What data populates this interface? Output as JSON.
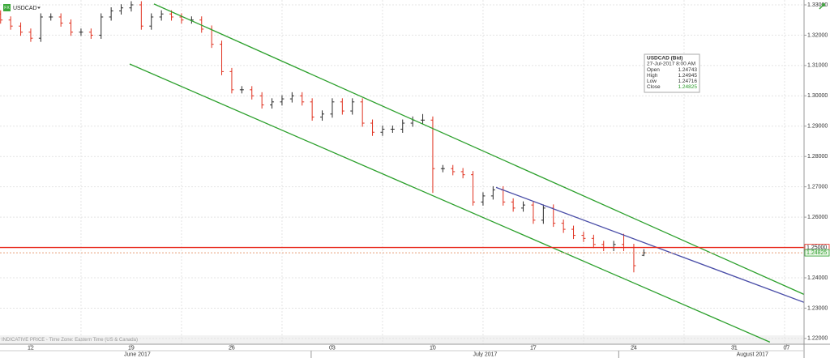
{
  "chart_data": {
    "type": "ohlc",
    "badge": "FX",
    "footnote": "INDICATIVE PRICE - Time Zone: Eastern Time (US & Canada)",
    "x": [
      -1.5,
      -1,
      -0.5,
      0,
      0.5,
      1,
      1.5,
      2,
      2.5,
      3,
      3.5,
      4,
      4.5,
      5,
      5.5,
      6,
      6.5,
      7,
      7.5,
      8,
      8.5,
      9,
      9.5,
      10,
      10.5,
      11,
      11.5,
      12,
      12.5,
      13,
      13.5,
      14,
      14.5,
      15,
      15.5,
      16,
      16.5,
      17,
      17.5,
      18,
      18.5,
      19,
      19.5,
      20,
      20.5,
      21,
      21.5,
      22,
      22.5,
      23,
      23.5,
      24,
      24.5,
      25,
      25.5,
      26,
      26.5,
      27,
      27.5,
      28,
      28.5,
      29,
      29.5,
      30,
      30.5
    ],
    "series": [
      {
        "name": "USDCAD",
        "up_color": "#2b2b2b",
        "down_color": "#e0301e",
        "open": [
          1.327,
          1.325,
          1.323,
          1.321,
          1.319,
          1.326,
          1.326,
          1.324,
          1.321,
          1.321,
          1.32,
          1.326,
          1.328,
          1.329,
          1.33,
          1.323,
          1.326,
          1.327,
          1.326,
          1.325,
          1.325,
          1.322,
          1.317,
          1.308,
          1.302,
          1.302,
          1.3,
          1.297,
          1.298,
          1.299,
          1.3,
          1.298,
          1.293,
          1.294,
          1.298,
          1.295,
          1.298,
          1.291,
          1.288,
          1.289,
          1.289,
          1.291,
          1.292,
          1.292,
          1.276,
          1.276,
          1.275,
          1.274,
          1.265,
          1.267,
          1.269,
          1.265,
          1.263,
          1.264,
          1.259,
          1.263,
          1.258,
          1.256,
          1.254,
          1.253,
          1.251,
          1.25,
          1.251,
          1.25,
          1.24743
        ],
        "high": [
          1.3282,
          1.3262,
          1.3242,
          1.3222,
          1.3272,
          1.3272,
          1.3272,
          1.3252,
          1.3222,
          1.3222,
          1.3272,
          1.3292,
          1.3302,
          1.3312,
          1.3312,
          1.3272,
          1.3282,
          1.3282,
          1.3272,
          1.3262,
          1.3262,
          1.3232,
          1.3182,
          1.3092,
          1.3032,
          1.3032,
          1.3012,
          1.2992,
          1.3002,
          1.3012,
          1.3012,
          1.2992,
          1.2952,
          1.2992,
          1.2992,
          1.2992,
          1.2992,
          1.2922,
          1.2902,
          1.2902,
          1.2922,
          1.2932,
          1.294,
          1.2932,
          1.2772,
          1.2772,
          1.2762,
          1.2752,
          1.2682,
          1.2702,
          1.2702,
          1.2662,
          1.2652,
          1.2652,
          1.2642,
          1.2642,
          1.2592,
          1.2572,
          1.2552,
          1.2542,
          1.2522,
          1.2522,
          1.2545,
          1.2512,
          1.24945
        ],
        "low": [
          1.3238,
          1.3218,
          1.3198,
          1.3178,
          1.3178,
          1.3248,
          1.3228,
          1.3198,
          1.3198,
          1.3188,
          1.3188,
          1.3248,
          1.3268,
          1.3278,
          1.3218,
          1.3218,
          1.3248,
          1.3248,
          1.3238,
          1.3238,
          1.3208,
          1.3158,
          1.3068,
          1.3008,
          1.3008,
          1.2988,
          1.2958,
          1.2958,
          1.2968,
          1.2978,
          1.2968,
          1.2918,
          1.2918,
          1.2928,
          1.2938,
          1.2938,
          1.2898,
          1.2868,
          1.2868,
          1.2878,
          1.2878,
          1.2898,
          1.2908,
          1.268,
          1.2748,
          1.2738,
          1.2728,
          1.2638,
          1.2638,
          1.2658,
          1.2638,
          1.2618,
          1.2618,
          1.2578,
          1.2578,
          1.2568,
          1.2548,
          1.2528,
          1.2518,
          1.2498,
          1.2488,
          1.2488,
          1.2488,
          1.2418,
          1.24716
        ],
        "close": [
          1.325,
          1.323,
          1.321,
          1.319,
          1.326,
          1.326,
          1.324,
          1.321,
          1.321,
          1.32,
          1.326,
          1.328,
          1.329,
          1.33,
          1.323,
          1.326,
          1.327,
          1.326,
          1.325,
          1.325,
          1.322,
          1.317,
          1.308,
          1.302,
          1.302,
          1.3,
          1.297,
          1.298,
          1.299,
          1.3,
          1.298,
          1.293,
          1.294,
          1.298,
          1.295,
          1.298,
          1.291,
          1.288,
          1.289,
          1.289,
          1.291,
          1.292,
          1.292,
          1.276,
          1.276,
          1.275,
          1.274,
          1.265,
          1.267,
          1.269,
          1.265,
          1.263,
          1.264,
          1.259,
          1.263,
          1.258,
          1.256,
          1.254,
          1.253,
          1.251,
          1.25,
          1.251,
          1.25,
          1.244,
          1.24825
        ]
      }
    ],
    "xlim": [
      -1.53,
      38.47
    ],
    "ylim": [
      1.2181,
      1.3316
    ],
    "xticks": [
      {
        "value": 0,
        "label": "12"
      },
      {
        "value": 5,
        "label": "19"
      },
      {
        "value": 10,
        "label": "26"
      },
      {
        "value": 15,
        "label": "03"
      },
      {
        "value": 20,
        "label": "10"
      },
      {
        "value": 25,
        "label": "17"
      },
      {
        "value": 30,
        "label": "24"
      },
      {
        "value": 35,
        "label": "31"
      },
      {
        "value": 37.6,
        "label": "07"
      }
    ],
    "months": [
      {
        "value": 5.3,
        "label": "June 2017"
      },
      {
        "value": 22.6,
        "label": "July 2017"
      },
      {
        "value": 35.9,
        "label": "August 2017"
      }
    ],
    "yticks": [
      {
        "value": 1.22,
        "label": "1.22000"
      },
      {
        "value": 1.23,
        "label": "1.23000"
      },
      {
        "value": 1.24,
        "label": "1.24000"
      },
      {
        "value": 1.25,
        "label": "1.25000"
      },
      {
        "value": 1.26,
        "label": "1.26000"
      },
      {
        "value": 1.27,
        "label": "1.27000"
      },
      {
        "value": 1.28,
        "label": "1.28000"
      },
      {
        "value": 1.29,
        "label": "1.29000"
      },
      {
        "value": 1.3,
        "label": "1.30000"
      },
      {
        "value": 1.31,
        "label": "1.31000"
      },
      {
        "value": 1.32,
        "label": "1.32000"
      },
      {
        "value": 1.33,
        "label": "1.33000"
      }
    ],
    "grid": true,
    "trend_lines": [
      {
        "x": [
          6.13,
          39.76
        ],
        "y": [
          1.3303,
          1.2307
        ],
        "color": "#2ca02c"
      },
      {
        "x": [
          4.92,
          36.77
        ],
        "y": [
          1.3105,
          1.2188
        ],
        "color": "#2ca02c"
      },
      {
        "x": [
          23.15,
          39.76
        ],
        "y": [
          1.2698,
          1.2287
        ],
        "color": "#4a4ea8"
      }
    ],
    "levels": [
      {
        "value": 1.25,
        "label": "1.25000",
        "color": "#e8271b",
        "style": "solid"
      },
      {
        "value": 1.24825,
        "color": "#e8a07a",
        "style": "dotted"
      }
    ],
    "info_box": {
      "title": "USDCAD (Bid)",
      "timestamp": "27-Jul-2017 8:00 AM",
      "fields": [
        "Open",
        "High",
        "Low",
        "Close"
      ]
    }
  }
}
